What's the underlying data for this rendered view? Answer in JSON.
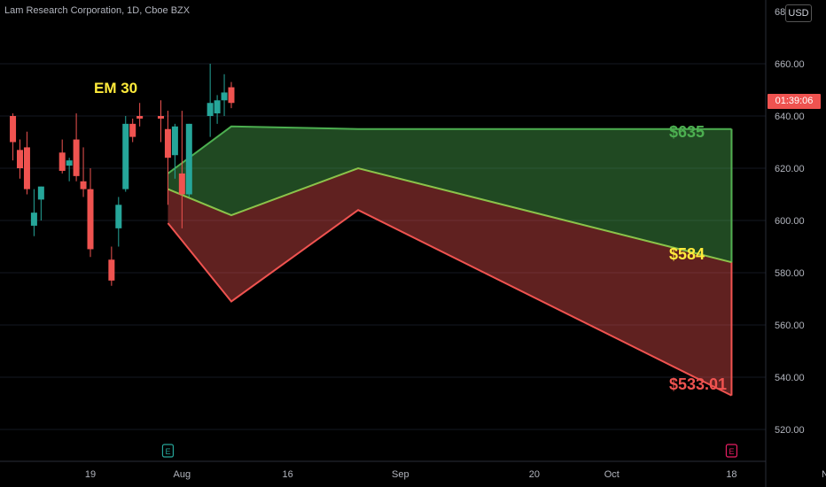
{
  "header": {
    "title": "Lam Research Corporation, 1D, Cboe BZX",
    "currency_button": "USD",
    "top_tick": "68"
  },
  "last_price_tag": {
    "label": "01:39:06",
    "color": "#ef5350"
  },
  "annotations": {
    "em_label": "EM 30",
    "high_label": "$635",
    "mid_label": "$584",
    "low_label": "$533.01"
  },
  "colors": {
    "up": "#26a69a",
    "down": "#ef5350",
    "band_green": "#4caf50",
    "band_red": "#ef5350",
    "mid_yellow": "#ffeb3b"
  },
  "chart_data": {
    "type": "candlestick",
    "title": "Lam Research Corporation, 1D, Cboe BZX",
    "y_axis": {
      "ticks": [
        520,
        540,
        560,
        580,
        600,
        620,
        640,
        660
      ],
      "tick_labels": [
        "520.00",
        "540.00",
        "560.00",
        "580.00",
        "600.00",
        "620.00",
        "640.00",
        "660.00"
      ],
      "position": "right"
    },
    "x_axis": {
      "ticks": [
        {
          "label": "19",
          "date": "2024-07-19"
        },
        {
          "label": "Aug",
          "date": "2024-08-01"
        },
        {
          "label": "16",
          "date": "2024-08-16"
        },
        {
          "label": "Sep",
          "date": "2024-09-01"
        },
        {
          "label": "20",
          "date": "2024-09-20"
        },
        {
          "label": "Oct",
          "date": "2024-10-01"
        },
        {
          "label": "18",
          "date": "2024-10-18"
        },
        {
          "label": "Nov",
          "date": "2024-11-01"
        }
      ]
    },
    "earnings_markers": [
      {
        "date": "2024-07-30",
        "label": "E",
        "color": "#26a69a"
      },
      {
        "date": "2024-10-18",
        "label": "E",
        "color": "#e91e63"
      }
    ],
    "candles": [
      {
        "date": "2024-07-08",
        "o": 640,
        "h": 641,
        "l": 623,
        "c": 630
      },
      {
        "date": "2024-07-09",
        "o": 627,
        "h": 631,
        "l": 616,
        "c": 620
      },
      {
        "date": "2024-07-10",
        "o": 628,
        "h": 634,
        "l": 610,
        "c": 612
      },
      {
        "date": "2024-07-11",
        "o": 598,
        "h": 612,
        "l": 594,
        "c": 603
      },
      {
        "date": "2024-07-12",
        "o": 608,
        "h": 613,
        "l": 600,
        "c": 613
      },
      {
        "date": "2024-07-15",
        "o": 626,
        "h": 631,
        "l": 618,
        "c": 619
      },
      {
        "date": "2024-07-16",
        "o": 621,
        "h": 624,
        "l": 615,
        "c": 623
      },
      {
        "date": "2024-07-17",
        "o": 631,
        "h": 641,
        "l": 615,
        "c": 617
      },
      {
        "date": "2024-07-18",
        "o": 615,
        "h": 628,
        "l": 609,
        "c": 612
      },
      {
        "date": "2024-07-19",
        "o": 612,
        "h": 620,
        "l": 586,
        "c": 589
      },
      {
        "date": "2024-07-22",
        "o": 585,
        "h": 590,
        "l": 575,
        "c": 577
      },
      {
        "date": "2024-07-23",
        "o": 597,
        "h": 609,
        "l": 590,
        "c": 606
      },
      {
        "date": "2024-07-24",
        "o": 612,
        "h": 640,
        "l": 611,
        "c": 637
      },
      {
        "date": "2024-07-25",
        "o": 637,
        "h": 639,
        "l": 630,
        "c": 632
      },
      {
        "date": "2024-07-26",
        "o": 640,
        "h": 645,
        "l": 636,
        "c": 639
      },
      {
        "date": "2024-07-29",
        "o": 640,
        "h": 646,
        "l": 630,
        "c": 639
      },
      {
        "date": "2024-07-30",
        "o": 635,
        "h": 642,
        "l": 606,
        "c": 624
      },
      {
        "date": "2024-07-31",
        "o": 625,
        "h": 637,
        "l": 616,
        "c": 636
      },
      {
        "date": "2024-08-01",
        "o": 618,
        "h": 642,
        "l": 597,
        "c": 610
      },
      {
        "date": "2024-08-02",
        "o": 610,
        "h": 637,
        "l": 609,
        "c": 637
      },
      {
        "date": "2024-08-05",
        "o": 640,
        "h": 660,
        "l": 632,
        "c": 645
      },
      {
        "date": "2024-08-06",
        "o": 641,
        "h": 648,
        "l": 637,
        "c": 646
      },
      {
        "date": "2024-08-07",
        "o": 646,
        "h": 656,
        "l": 640,
        "c": 649
      },
      {
        "date": "2024-08-08",
        "o": 651,
        "h": 653,
        "l": 643,
        "c": 645
      }
    ],
    "expected_move_band": {
      "upper": [
        {
          "date": "2024-07-30",
          "price": 618
        },
        {
          "date": "2024-08-08",
          "price": 636
        },
        {
          "date": "2024-08-26",
          "price": 635
        },
        {
          "date": "2024-10-18",
          "price": 635
        }
      ],
      "middle": [
        {
          "date": "2024-07-30",
          "price": 612
        },
        {
          "date": "2024-08-08",
          "price": 602
        },
        {
          "date": "2024-08-26",
          "price": 620
        },
        {
          "date": "2024-10-18",
          "price": 584
        }
      ],
      "lower": [
        {
          "date": "2024-07-30",
          "price": 599
        },
        {
          "date": "2024-08-08",
          "price": 569
        },
        {
          "date": "2024-08-26",
          "price": 604
        },
        {
          "date": "2024-10-18",
          "price": 533.01
        }
      ]
    }
  }
}
